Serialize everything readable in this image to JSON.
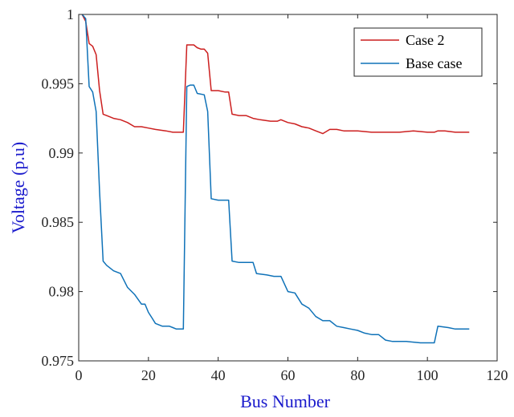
{
  "chart_data": {
    "type": "line",
    "title": "",
    "xlabel": "Bus Number",
    "ylabel": "Voltage (p.u)",
    "xlim": [
      0,
      120
    ],
    "ylim": [
      0.975,
      1.0
    ],
    "xticks": [
      0,
      20,
      40,
      60,
      80,
      100,
      120
    ],
    "yticks": [
      0.975,
      0.98,
      0.985,
      0.99,
      0.995,
      1
    ],
    "ytick_labels": [
      "0.975",
      "0.98",
      "0.985",
      "0.99",
      "0.995",
      "1"
    ],
    "grid": false,
    "legend_position": "top-right",
    "series": [
      {
        "name": "Case 2",
        "color": "#cc1f1f",
        "x": [
          1,
          2,
          3,
          4,
          5,
          6,
          7,
          8,
          10,
          12,
          14,
          16,
          18,
          20,
          22,
          25,
          27,
          30,
          31,
          32,
          33,
          34,
          35,
          36,
          37,
          38,
          40,
          42,
          43,
          44,
          46,
          48,
          50,
          52,
          55,
          57,
          58,
          60,
          62,
          64,
          66,
          68,
          70,
          72,
          74,
          76,
          80,
          84,
          88,
          92,
          96,
          100,
          102,
          103,
          105,
          108,
          112
        ],
        "values": [
          1.0,
          0.9995,
          0.9979,
          0.9977,
          0.9971,
          0.9945,
          0.9928,
          0.9927,
          0.9925,
          0.9924,
          0.9922,
          0.9919,
          0.9919,
          0.9918,
          0.9917,
          0.9916,
          0.9915,
          0.9915,
          0.9978,
          0.9978,
          0.9978,
          0.9976,
          0.9975,
          0.9975,
          0.9972,
          0.9945,
          0.9945,
          0.9944,
          0.9944,
          0.9928,
          0.9927,
          0.9927,
          0.9925,
          0.9924,
          0.9923,
          0.9923,
          0.9924,
          0.9922,
          0.9921,
          0.9919,
          0.9918,
          0.9916,
          0.9914,
          0.9917,
          0.9917,
          0.9916,
          0.9916,
          0.9915,
          0.9915,
          0.9915,
          0.9916,
          0.9915,
          0.9915,
          0.9916,
          0.9916,
          0.9915,
          0.9915
        ]
      },
      {
        "name": "Base case",
        "color": "#0f72b8",
        "x": [
          1,
          2,
          3,
          4,
          5,
          6,
          7,
          8,
          10,
          12,
          14,
          16,
          18,
          19,
          20,
          21,
          22,
          24,
          26,
          27,
          28,
          30,
          31,
          32,
          33,
          34,
          36,
          37,
          38,
          40,
          42,
          43,
          44,
          46,
          48,
          50,
          51,
          54,
          56,
          58,
          60,
          62,
          63,
          64,
          66,
          68,
          70,
          72,
          74,
          76,
          78,
          80,
          82,
          84,
          86,
          88,
          90,
          94,
          98,
          101,
          102,
          103,
          106,
          108,
          112
        ],
        "values": [
          1.0,
          0.9997,
          0.9948,
          0.9944,
          0.993,
          0.9872,
          0.9822,
          0.9819,
          0.9815,
          0.9813,
          0.9803,
          0.9798,
          0.9791,
          0.9791,
          0.9785,
          0.9781,
          0.9777,
          0.9775,
          0.9775,
          0.9774,
          0.9773,
          0.9773,
          0.9948,
          0.9949,
          0.9949,
          0.9943,
          0.9942,
          0.993,
          0.9867,
          0.9866,
          0.9866,
          0.9866,
          0.9822,
          0.9821,
          0.9821,
          0.9821,
          0.9813,
          0.9812,
          0.9811,
          0.9811,
          0.98,
          0.9799,
          0.9795,
          0.9791,
          0.9788,
          0.9782,
          0.9779,
          0.9779,
          0.9775,
          0.9774,
          0.9773,
          0.9772,
          0.977,
          0.9769,
          0.9769,
          0.9765,
          0.9764,
          0.9764,
          0.9763,
          0.9763,
          0.9763,
          0.9775,
          0.9774,
          0.9773,
          0.9773
        ]
      }
    ]
  }
}
